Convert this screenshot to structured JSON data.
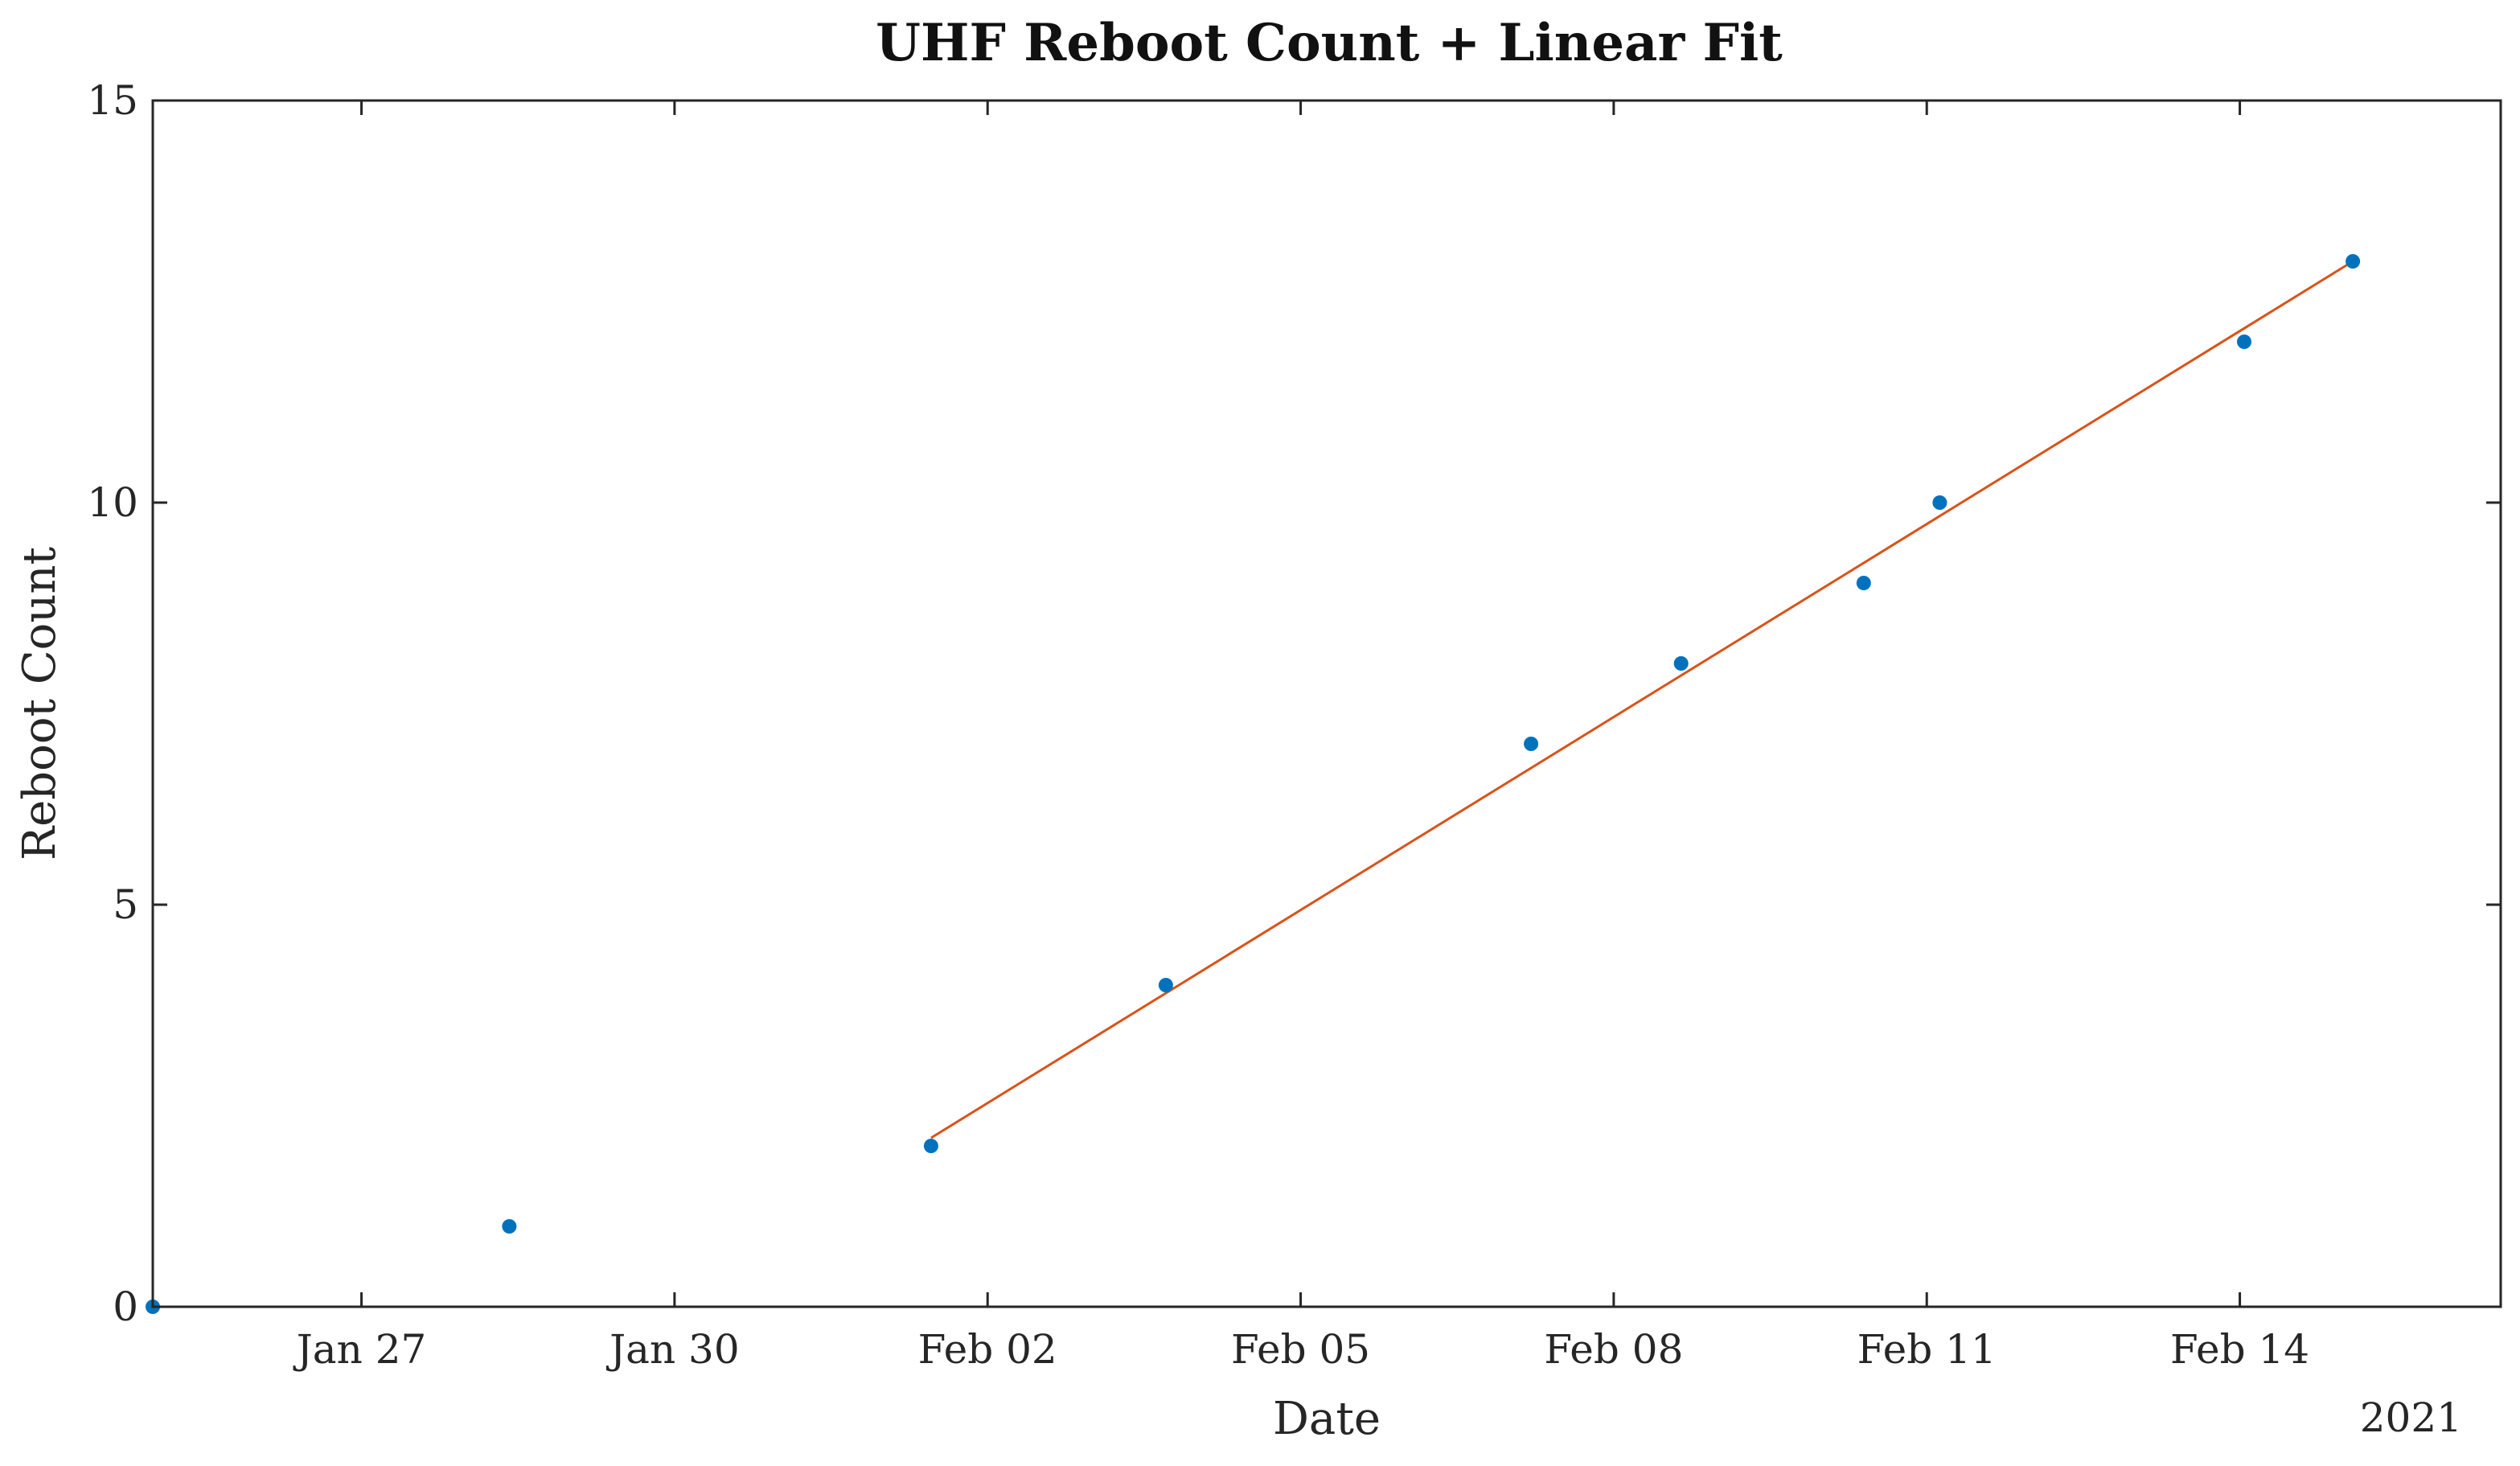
{
  "chart_data": {
    "type": "scatter",
    "title": "UHF Reboot Count + Linear Fit",
    "xlabel": "Date",
    "ylabel": "Reboot Count",
    "x_axis_type": "date",
    "x_secondary_label": "2021",
    "xlim": [
      "2021-01-25",
      "2021-02-16T12:00"
    ],
    "ylim": [
      0,
      15
    ],
    "yticks": [
      0,
      5,
      10,
      15
    ],
    "xticks": [
      {
        "date": "2021-01-27",
        "label": "Jan 27"
      },
      {
        "date": "2021-01-30",
        "label": "Jan 30"
      },
      {
        "date": "2021-02-02",
        "label": "Feb 02"
      },
      {
        "date": "2021-02-05",
        "label": "Feb 05"
      },
      {
        "date": "2021-02-08",
        "label": "Feb 08"
      },
      {
        "date": "2021-02-11",
        "label": "Feb 11"
      },
      {
        "date": "2021-02-14",
        "label": "Feb 14"
      }
    ],
    "grid": false,
    "series": [
      {
        "type": "scatter",
        "color": "#0072BD",
        "points": [
          {
            "x": "2021-01-25T00:00",
            "y": 0
          },
          {
            "x": "2021-01-28T10:00",
            "y": 1
          },
          {
            "x": "2021-02-01T11:00",
            "y": 2
          },
          {
            "x": "2021-02-03T17:00",
            "y": 4
          },
          {
            "x": "2021-02-07T05:00",
            "y": 7
          },
          {
            "x": "2021-02-08T15:30",
            "y": 8
          },
          {
            "x": "2021-02-10T09:30",
            "y": 9
          },
          {
            "x": "2021-02-11T03:00",
            "y": 10
          },
          {
            "x": "2021-02-14T01:00",
            "y": 12
          },
          {
            "x": "2021-02-15T02:00",
            "y": 13
          }
        ]
      },
      {
        "type": "line",
        "color": "#D95319",
        "points": [
          {
            "x": "2021-02-01T11:00",
            "y": 2.1
          },
          {
            "x": "2021-02-15T02:00",
            "y": 13
          }
        ]
      }
    ]
  }
}
